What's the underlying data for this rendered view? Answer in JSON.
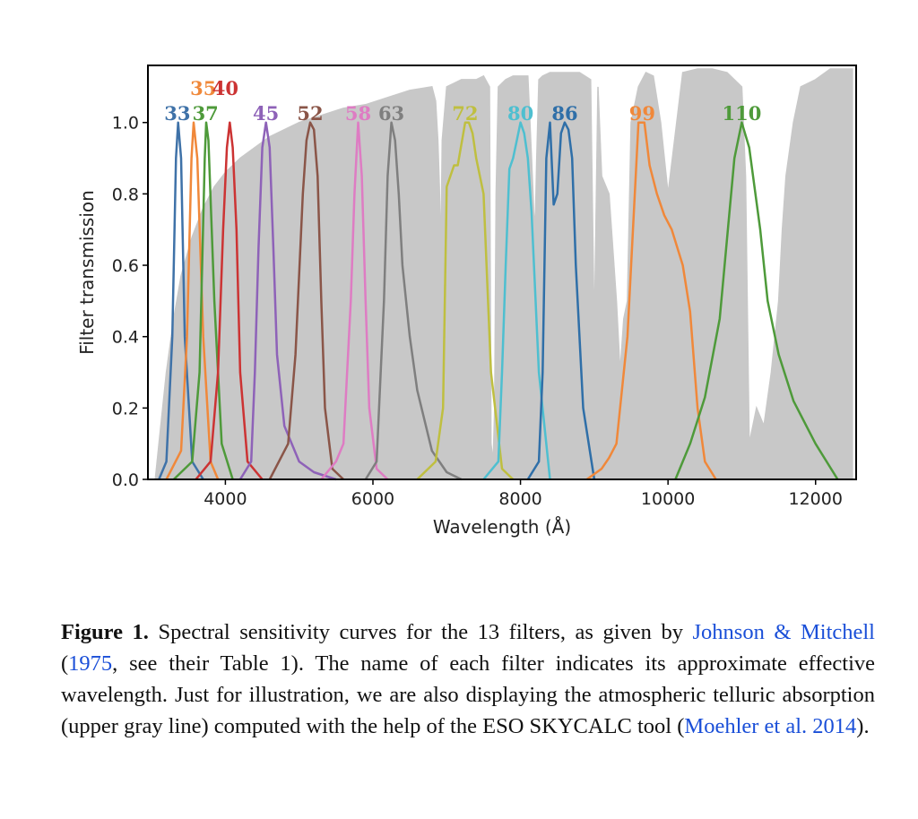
{
  "chart_data": {
    "type": "line",
    "xlabel": "Wavelength  (Å)",
    "ylabel": "Filter transmission",
    "xlim": [
      2950,
      12550
    ],
    "ylim": [
      0.0,
      1.16
    ],
    "xticks": [
      4000,
      6000,
      8000,
      10000,
      12000
    ],
    "xtick_labels": [
      "4000",
      "6000",
      "8000",
      "10000",
      "12000"
    ],
    "yticks": [
      0.0,
      0.2,
      0.4,
      0.6,
      0.8,
      1.0
    ],
    "ytick_labels": [
      "0.0",
      "0.2",
      "0.4",
      "0.6",
      "0.8",
      "1.0"
    ],
    "grid": false,
    "atmosphere": {
      "color": "#c8c8c8",
      "x": [
        3050,
        3100,
        3200,
        3300,
        3400,
        3550,
        3700,
        3850,
        4000,
        4200,
        4400,
        4600,
        4800,
        5000,
        5300,
        5600,
        5900,
        6200,
        6500,
        6800,
        6850,
        6880,
        6900,
        6920,
        6940,
        7000,
        7100,
        7200,
        7300,
        7400,
        7500,
        7580,
        7600,
        7630,
        7650,
        7670,
        7700,
        7800,
        7900,
        8000,
        8100,
        8150,
        8180,
        8200,
        8220,
        8250,
        8300,
        8400,
        8600,
        8800,
        8950,
        9000,
        9050,
        9100,
        9200,
        9300,
        9350,
        9400,
        9450,
        9500,
        9600,
        9700,
        9800,
        9900,
        10000,
        10200,
        10400,
        10600,
        10800,
        11000,
        11050,
        11100,
        11200,
        11300,
        11400,
        11500,
        11550,
        11600,
        11700,
        11800,
        12000,
        12200,
        12500
      ],
      "y": [
        0.0,
        0.1,
        0.3,
        0.45,
        0.57,
        0.68,
        0.76,
        0.82,
        0.86,
        0.9,
        0.93,
        0.96,
        0.98,
        1.0,
        1.02,
        1.04,
        1.05,
        1.07,
        1.09,
        1.1,
        1.06,
        0.95,
        0.82,
        0.62,
        0.95,
        1.1,
        1.11,
        1.12,
        1.12,
        1.12,
        1.13,
        1.1,
        0.1,
        0.05,
        0.2,
        0.8,
        1.1,
        1.12,
        1.13,
        1.13,
        1.13,
        0.9,
        0.75,
        0.7,
        0.9,
        1.12,
        1.13,
        1.14,
        1.14,
        1.14,
        1.12,
        0.4,
        1.1,
        0.85,
        0.8,
        0.5,
        0.3,
        0.45,
        0.5,
        1.0,
        1.1,
        1.14,
        1.13,
        1.0,
        0.8,
        1.14,
        1.15,
        1.15,
        1.14,
        1.1,
        0.85,
        0.1,
        0.2,
        0.15,
        0.3,
        0.5,
        0.7,
        0.85,
        1.0,
        1.1,
        1.12,
        1.15,
        1.15
      ]
    },
    "series": [
      {
        "name": "33",
        "color": "#3f72a8",
        "x": [
          3100,
          3200,
          3280,
          3330,
          3360,
          3400,
          3450,
          3550,
          3700
        ],
        "y": [
          0.0,
          0.05,
          0.4,
          0.9,
          1.0,
          0.9,
          0.4,
          0.05,
          0.0
        ]
      },
      {
        "name": "35",
        "color": "#f0883a",
        "x": [
          3200,
          3400,
          3480,
          3540,
          3570,
          3620,
          3700,
          3800,
          3900
        ],
        "y": [
          0.0,
          0.08,
          0.4,
          0.9,
          1.0,
          0.9,
          0.4,
          0.05,
          0.0
        ]
      },
      {
        "name": "37",
        "color": "#4e9a3a",
        "x": [
          3300,
          3550,
          3650,
          3720,
          3740,
          3770,
          3850,
          3950,
          4100
        ],
        "y": [
          0.0,
          0.05,
          0.3,
          0.9,
          1.0,
          0.95,
          0.5,
          0.1,
          0.0
        ]
      },
      {
        "name": "40",
        "color": "#cc3333",
        "x": [
          3600,
          3800,
          3900,
          3970,
          4020,
          4060,
          4100,
          4150,
          4200,
          4300,
          4500
        ],
        "y": [
          0.0,
          0.05,
          0.3,
          0.7,
          0.93,
          1.0,
          0.93,
          0.7,
          0.3,
          0.05,
          0.0
        ]
      },
      {
        "name": "45",
        "color": "#8e62b8",
        "x": [
          4200,
          4350,
          4400,
          4450,
          4500,
          4550,
          4600,
          4650,
          4700,
          4800,
          5000,
          5200,
          5500
        ],
        "y": [
          0.0,
          0.05,
          0.3,
          0.65,
          0.93,
          1.0,
          0.93,
          0.65,
          0.35,
          0.15,
          0.05,
          0.02,
          0.0
        ]
      },
      {
        "name": "52",
        "color": "#8a5548",
        "x": [
          4600,
          4850,
          4950,
          5050,
          5100,
          5150,
          5200,
          5250,
          5300,
          5350,
          5450,
          5600
        ],
        "y": [
          0.0,
          0.1,
          0.35,
          0.8,
          0.95,
          1.0,
          0.98,
          0.85,
          0.5,
          0.2,
          0.03,
          0.0
        ]
      },
      {
        "name": "58",
        "color": "#de7cc3",
        "x": [
          5300,
          5500,
          5600,
          5700,
          5750,
          5800,
          5850,
          5900,
          5950,
          6050,
          6200
        ],
        "y": [
          0.0,
          0.05,
          0.1,
          0.5,
          0.8,
          1.0,
          0.85,
          0.5,
          0.2,
          0.03,
          0.0
        ]
      },
      {
        "name": "63",
        "color": "#7f7f7f",
        "x": [
          5900,
          6050,
          6150,
          6200,
          6250,
          6300,
          6350,
          6400,
          6500,
          6600,
          6800,
          7000,
          7200
        ],
        "y": [
          0.0,
          0.05,
          0.5,
          0.85,
          1.0,
          0.95,
          0.8,
          0.6,
          0.4,
          0.25,
          0.08,
          0.02,
          0.0
        ]
      },
      {
        "name": "72",
        "color": "#bfbf40",
        "x": [
          6600,
          6850,
          6950,
          7000,
          7100,
          7150,
          7250,
          7300,
          7350,
          7400,
          7500,
          7600,
          7750,
          7900
        ],
        "y": [
          0.0,
          0.05,
          0.2,
          0.82,
          0.88,
          0.88,
          1.0,
          1.0,
          0.97,
          0.9,
          0.8,
          0.3,
          0.03,
          0.0
        ]
      },
      {
        "name": "80",
        "color": "#4ebfd0",
        "x": [
          7500,
          7700,
          7750,
          7800,
          7850,
          7900,
          7950,
          8000,
          8050,
          8100,
          8150,
          8250,
          8400
        ],
        "y": [
          0.0,
          0.05,
          0.3,
          0.6,
          0.87,
          0.9,
          0.95,
          1.0,
          0.97,
          0.9,
          0.75,
          0.3,
          0.0
        ]
      },
      {
        "name": "86",
        "color": "#2f6fa8",
        "x": [
          8100,
          8250,
          8300,
          8350,
          8400,
          8450,
          8500,
          8550,
          8600,
          8650,
          8700,
          8750,
          8850,
          9000
        ],
        "y": [
          0.0,
          0.05,
          0.3,
          0.9,
          1.0,
          0.77,
          0.8,
          0.97,
          1.0,
          0.98,
          0.9,
          0.6,
          0.2,
          0.0
        ]
      },
      {
        "name": "99",
        "color": "#f0883a",
        "x": [
          8900,
          9100,
          9200,
          9300,
          9450,
          9550,
          9600,
          9680,
          9750,
          9850,
          9950,
          10050,
          10200,
          10300,
          10400,
          10500,
          10650
        ],
        "y": [
          0.0,
          0.03,
          0.06,
          0.1,
          0.4,
          0.8,
          1.0,
          1.0,
          0.88,
          0.8,
          0.74,
          0.7,
          0.6,
          0.47,
          0.2,
          0.05,
          0.0
        ]
      },
      {
        "name": "110",
        "color": "#4e9a3a",
        "x": [
          10100,
          10300,
          10500,
          10700,
          10900,
          11000,
          11100,
          11250,
          11350,
          11500,
          11700,
          12000,
          12300
        ],
        "y": [
          0.0,
          0.1,
          0.23,
          0.45,
          0.9,
          1.0,
          0.93,
          0.7,
          0.5,
          0.35,
          0.22,
          0.1,
          0.0
        ]
      }
    ],
    "labels": [
      {
        "text": "33",
        "row": 1,
        "x": 3350,
        "color": "#3f72a8"
      },
      {
        "text": "35",
        "row": 2,
        "x": 3700,
        "color": "#f0883a"
      },
      {
        "text": "37",
        "row": 1,
        "x": 3730,
        "color": "#4e9a3a"
      },
      {
        "text": "40",
        "row": 2,
        "x": 4000,
        "color": "#cc3333"
      },
      {
        "text": "45",
        "row": 1,
        "x": 4550,
        "color": "#8e62b8"
      },
      {
        "text": "52",
        "row": 1,
        "x": 5150,
        "color": "#8a5548"
      },
      {
        "text": "58",
        "row": 1,
        "x": 5800,
        "color": "#de7cc3"
      },
      {
        "text": "63",
        "row": 1,
        "x": 6250,
        "color": "#7f7f7f"
      },
      {
        "text": "72",
        "row": 1,
        "x": 7250,
        "color": "#bfbf40"
      },
      {
        "text": "80",
        "row": 1,
        "x": 8000,
        "color": "#4ebfd0"
      },
      {
        "text": "86",
        "row": 1,
        "x": 8600,
        "color": "#2f6fa8"
      },
      {
        "text": "99",
        "row": 1,
        "x": 9650,
        "color": "#f0883a"
      },
      {
        "text": "110",
        "row": 1,
        "x": 11000,
        "color": "#4e9a3a"
      }
    ]
  },
  "caption": {
    "fig_label": "Figure 1.",
    "text_1": " Spectral sensitivity curves for the 13 filters, as given by ",
    "cite_authors": "Johnson & Mitchell",
    "text_2": " (",
    "cite_year": "1975",
    "text_3": ", see their Table 1). The name of each filter indicates its approximate effective wavelength. Just for illustration, we are also displaying the atmospheric telluric absorption (upper gray line) computed with the help of the ESO SKYCALC tool (",
    "cite_2": "Moehler et al. 2014",
    "text_4": ")."
  }
}
